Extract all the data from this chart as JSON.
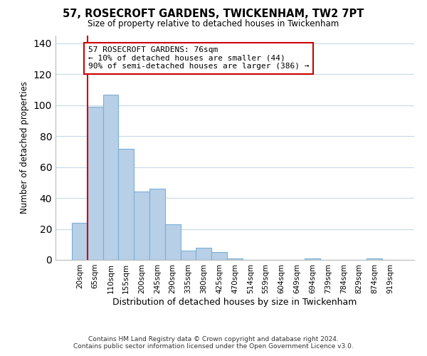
{
  "title": "57, ROSECROFT GARDENS, TWICKENHAM, TW2 7PT",
  "subtitle": "Size of property relative to detached houses in Twickenham",
  "xlabel": "Distribution of detached houses by size in Twickenham",
  "ylabel": "Number of detached properties",
  "bar_labels": [
    "20sqm",
    "65sqm",
    "110sqm",
    "155sqm",
    "200sqm",
    "245sqm",
    "290sqm",
    "335sqm",
    "380sqm",
    "425sqm",
    "470sqm",
    "514sqm",
    "559sqm",
    "604sqm",
    "649sqm",
    "694sqm",
    "739sqm",
    "784sqm",
    "829sqm",
    "874sqm",
    "919sqm"
  ],
  "bar_values": [
    24,
    99,
    107,
    72,
    44,
    46,
    23,
    6,
    8,
    5,
    1,
    0,
    0,
    0,
    0,
    1,
    0,
    0,
    0,
    1,
    0
  ],
  "bar_color": "#b8cfe8",
  "bar_edgecolor": "#7bafd4",
  "ylim": [
    0,
    145
  ],
  "yticks": [
    0,
    20,
    40,
    60,
    80,
    100,
    120,
    140
  ],
  "annotation_text": "57 ROSECROFT GARDENS: 76sqm\n← 10% of detached houses are smaller (44)\n90% of semi-detached houses are larger (386) →",
  "annotation_box_color": "#ffffff",
  "annotation_box_edgecolor": "#cc0000",
  "red_line_color": "#cc0000",
  "footer_line1": "Contains HM Land Registry data © Crown copyright and database right 2024.",
  "footer_line2": "Contains public sector information licensed under the Open Government Licence v3.0.",
  "background_color": "#ffffff",
  "grid_color": "#c8d8e8"
}
